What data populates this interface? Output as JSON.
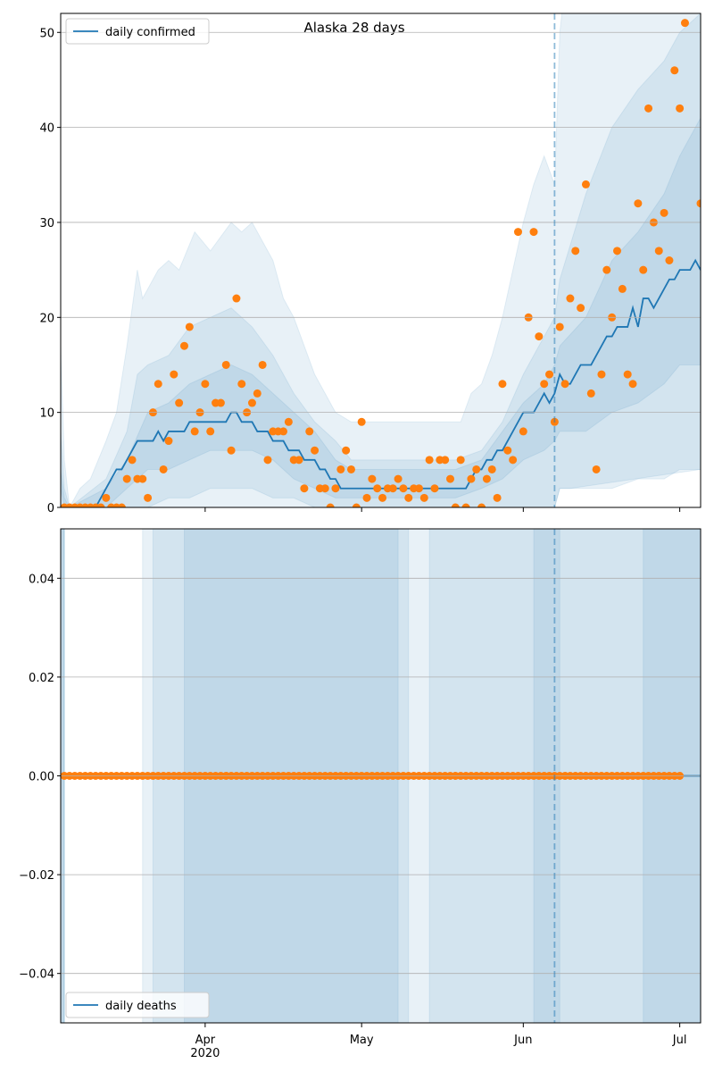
{
  "chart_data": [
    {
      "type": "line",
      "title": "Alaska 28 days",
      "xlim": [
        -0.7,
        122
      ],
      "ylim": [
        0,
        52
      ],
      "yticks": [
        0,
        10,
        20,
        30,
        40,
        50
      ],
      "grid": true,
      "legend": "upper left",
      "vline": 94,
      "bands": [
        {
          "color": "#1f77b4",
          "x": [
            -0.7,
            0,
            1,
            3,
            5,
            8,
            10,
            12,
            14,
            15,
            18,
            20,
            22,
            25,
            28,
            32,
            34,
            36,
            38,
            40,
            42,
            44,
            46,
            48,
            50,
            52,
            55,
            60,
            70,
            76,
            78,
            80,
            82,
            84,
            86,
            88,
            90,
            92,
            94,
            95,
            97,
            122
          ],
          "upper": [
            17,
            5,
            0,
            2,
            3,
            7,
            10,
            17,
            25,
            22,
            25,
            26,
            25,
            29,
            27,
            30,
            29,
            30,
            28,
            26,
            22,
            20,
            17,
            14,
            12,
            10,
            9,
            9,
            9,
            9,
            12,
            13,
            16,
            20,
            25,
            30,
            34,
            37,
            34,
            50,
            60,
            60
          ],
          "lower": [
            0,
            0,
            0,
            0,
            0,
            0,
            0,
            0,
            0,
            0,
            0,
            0,
            0,
            0,
            0,
            0,
            0,
            0,
            0,
            0,
            0,
            0,
            0,
            0,
            0,
            0,
            0,
            0,
            0,
            0,
            0,
            0,
            0,
            0,
            0,
            0,
            0,
            0,
            0,
            2,
            2,
            4
          ]
        },
        {
          "color": "#1f77b4",
          "x": [
            -0.7,
            0,
            1,
            8,
            12,
            14,
            16,
            20,
            24,
            28,
            32,
            36,
            40,
            44,
            48,
            52,
            55,
            60,
            75,
            80,
            84,
            88,
            92,
            94,
            95,
            100,
            105,
            110,
            115,
            118,
            122
          ],
          "upper": [
            8,
            2,
            0,
            3,
            8,
            14,
            15,
            16,
            19,
            20,
            21,
            19,
            16,
            12,
            9,
            7,
            5,
            5,
            5,
            6,
            9,
            14,
            18,
            20,
            24,
            33,
            40,
            44,
            47,
            50,
            52
          ],
          "lower": [
            0,
            0,
            0,
            0,
            0,
            0,
            0,
            1,
            1,
            2,
            2,
            2,
            1,
            1,
            0,
            0,
            0,
            0,
            0,
            0,
            0,
            0,
            0,
            0,
            2,
            2,
            2,
            3,
            3,
            4,
            4
          ]
        },
        {
          "color": "#1f77b4",
          "x": [
            -0.7,
            0,
            1,
            8,
            12,
            16,
            20,
            24,
            28,
            32,
            36,
            40,
            44,
            48,
            52,
            55,
            75,
            80,
            84,
            88,
            92,
            94,
            95,
            100,
            105,
            110,
            115,
            118,
            122
          ],
          "upper": [
            4,
            1,
            0,
            2,
            5,
            10,
            11,
            13,
            14,
            15,
            14,
            12,
            10,
            8,
            5,
            4,
            4,
            5,
            8,
            11,
            13,
            15,
            17,
            20,
            26,
            29,
            33,
            37,
            41
          ],
          "lower": [
            2,
            0,
            0,
            0,
            2,
            4,
            4,
            5,
            6,
            6,
            6,
            5,
            3,
            2,
            1,
            1,
            1,
            2,
            3,
            5,
            6,
            7,
            8,
            8,
            10,
            11,
            13,
            15,
            15
          ]
        }
      ],
      "series": [
        {
          "name": "daily confirmed",
          "color": "#1f77b4",
          "style": "line",
          "values": [
            0,
            0,
            0,
            0,
            0,
            0,
            0,
            1,
            2,
            3,
            4,
            4,
            5,
            6,
            7,
            7,
            7,
            7,
            8,
            7,
            8,
            8,
            8,
            8,
            9,
            9,
            9,
            9,
            9,
            9,
            9,
            9,
            10,
            10,
            9,
            9,
            9,
            8,
            8,
            8,
            7,
            7,
            7,
            6,
            6,
            6,
            5,
            5,
            5,
            4,
            4,
            3,
            3,
            2,
            2,
            2,
            2,
            2,
            2,
            2,
            2,
            2,
            2,
            2,
            2,
            2,
            2,
            2,
            2,
            2,
            2,
            2,
            2,
            2,
            2,
            2,
            2,
            2,
            3,
            4,
            4,
            5,
            5,
            6,
            6,
            7,
            8,
            9,
            10,
            10,
            10,
            11,
            12,
            11,
            12,
            14,
            13,
            13,
            14,
            15,
            15,
            15,
            16,
            17,
            18,
            18,
            19,
            19,
            19,
            21,
            19,
            22,
            22,
            21,
            22,
            23,
            24,
            24,
            25,
            25,
            25,
            26,
            25
          ]
        },
        {
          "color": "#ff7f0e",
          "style": "points",
          "values": [
            0,
            0,
            0,
            0,
            0,
            0,
            0,
            0,
            1,
            0,
            0,
            0,
            3,
            5,
            3,
            3,
            1,
            10,
            13,
            4,
            7,
            14,
            11,
            17,
            19,
            8,
            10,
            13,
            8,
            11,
            11,
            15,
            6,
            22,
            13,
            10,
            11,
            12,
            15,
            5,
            8,
            8,
            8,
            9,
            5,
            5,
            2,
            8,
            6,
            2,
            2,
            0,
            2,
            4,
            6,
            4,
            0,
            9,
            1,
            3,
            2,
            1,
            2,
            2,
            3,
            2,
            1,
            2,
            2,
            1,
            5,
            2,
            5,
            5,
            3,
            0,
            5,
            0,
            3,
            4,
            0,
            3,
            4,
            1,
            13,
            6,
            5,
            29,
            8,
            20,
            29,
            18,
            13,
            14,
            9,
            19,
            13,
            22,
            27,
            21,
            34,
            12,
            4,
            14,
            25,
            20,
            27,
            23,
            14,
            13,
            32,
            25,
            42,
            30,
            27,
            31,
            26,
            46,
            42,
            51,
            null,
            null,
            32
          ]
        }
      ]
    },
    {
      "type": "line",
      "xlim": [
        -0.7,
        122
      ],
      "ylim": [
        -0.05,
        0.05
      ],
      "yticks": [
        {
          "value": -0.04,
          "label": "−0.04"
        },
        {
          "value": -0.02,
          "label": "−0.02"
        },
        {
          "value": 0,
          "label": "0.00"
        },
        {
          "value": 0.02,
          "label": "0.02"
        },
        {
          "value": 0.04,
          "label": "0.04"
        }
      ],
      "xticks": [
        {
          "value": 27,
          "label": "Apr\n2020"
        },
        {
          "value": 57,
          "label": "May"
        },
        {
          "value": 88,
          "label": "Jun"
        },
        {
          "value": 118,
          "label": "Jul"
        }
      ],
      "grid": true,
      "legend": "lower left",
      "vline": 94,
      "bands": [
        {
          "color": "#1f77b4",
          "ranges": [
            [
              -0.7,
              0
            ],
            [
              15,
              122
            ]
          ]
        },
        {
          "color": "#1f77b4",
          "ranges": [
            [
              -0.7,
              0
            ],
            [
              17,
              66
            ],
            [
              70,
              122
            ]
          ]
        },
        {
          "color": "#1f77b4",
          "ranges": [
            [
              -0.7,
              0
            ],
            [
              23,
              64
            ],
            [
              90,
              95
            ],
            [
              111,
              122
            ]
          ]
        }
      ],
      "series": [
        {
          "name": "daily deaths",
          "color": "#1f77b4",
          "style": "line",
          "values": [
            0,
            0,
            0,
            0,
            0,
            0,
            0,
            0,
            0,
            0,
            0,
            0,
            0,
            0,
            0,
            0,
            0,
            0,
            0,
            0,
            0,
            0,
            0,
            0,
            0,
            0,
            0,
            0,
            0,
            0,
            0,
            0,
            0,
            0,
            0,
            0,
            0,
            0,
            0,
            0,
            0,
            0,
            0,
            0,
            0,
            0,
            0,
            0,
            0,
            0,
            0,
            0,
            0,
            0,
            0,
            0,
            0,
            0,
            0,
            0,
            0,
            0,
            0,
            0,
            0,
            0,
            0,
            0,
            0,
            0,
            0,
            0,
            0,
            0,
            0,
            0,
            0,
            0,
            0,
            0,
            0,
            0,
            0,
            0,
            0,
            0,
            0,
            0,
            0,
            0,
            0,
            0,
            0,
            0,
            0,
            0,
            0,
            0,
            0,
            0,
            0,
            0,
            0,
            0,
            0,
            0,
            0,
            0,
            0,
            0,
            0,
            0,
            0,
            0,
            0,
            0,
            0,
            0,
            0,
            0,
            0,
            0,
            0
          ]
        },
        {
          "color": "#ff7f0e",
          "style": "points",
          "values": [
            0,
            0,
            0,
            0,
            0,
            0,
            0,
            0,
            0,
            0,
            0,
            0,
            0,
            0,
            0,
            0,
            0,
            0,
            0,
            0,
            0,
            0,
            0,
            0,
            0,
            0,
            0,
            0,
            0,
            0,
            0,
            0,
            0,
            0,
            0,
            0,
            0,
            0,
            0,
            0,
            0,
            0,
            0,
            0,
            0,
            0,
            0,
            0,
            0,
            0,
            0,
            0,
            0,
            0,
            0,
            0,
            0,
            0,
            0,
            0,
            0,
            0,
            0,
            0,
            0,
            0,
            0,
            0,
            0,
            0,
            0,
            0,
            0,
            0,
            0,
            0,
            0,
            0,
            0,
            0,
            0,
            0,
            0,
            0,
            0,
            0,
            0,
            0,
            0,
            0,
            0,
            0,
            0,
            0,
            0,
            0,
            0,
            0,
            0,
            0,
            0,
            0,
            0,
            0,
            0,
            0,
            0,
            0,
            0,
            0,
            0,
            0,
            0,
            0,
            0,
            0,
            0,
            0,
            0
          ]
        }
      ]
    }
  ]
}
